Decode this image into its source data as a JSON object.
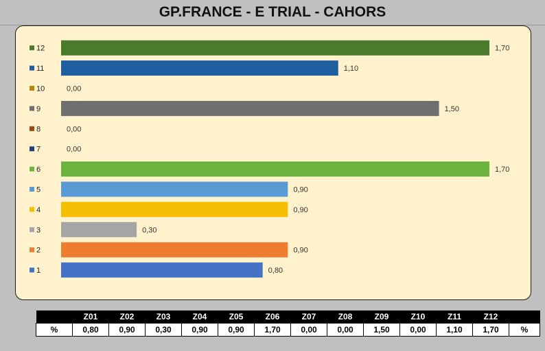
{
  "title": "GP.FRANCE - E TRIAL - CAHORS",
  "colors": {
    "background": "#c0c0c0",
    "plot_area": "#fff2cc"
  },
  "chart_data": {
    "type": "bar",
    "orientation": "horizontal",
    "categories": [
      "12",
      "11",
      "10",
      "9",
      "8",
      "7",
      "6",
      "5",
      "4",
      "3",
      "2",
      "1"
    ],
    "values": [
      1.7,
      1.1,
      0.0,
      1.5,
      0.0,
      0.0,
      1.7,
      0.9,
      0.9,
      0.3,
      0.9,
      0.8
    ],
    "value_labels": [
      "1,70",
      "1,10",
      "0,00",
      "1,50",
      "0,00",
      "0,00",
      "1,70",
      "0,90",
      "0,90",
      "0,30",
      "0,90",
      "0,80"
    ],
    "colors": [
      "#4a7a2c",
      "#1f5fa0",
      "#b8860b",
      "#6f6f6f",
      "#a0460f",
      "#233f80",
      "#6ab33e",
      "#5b9bd5",
      "#f5be00",
      "#a5a5a5",
      "#ed7d31",
      "#4472c4"
    ],
    "xlim": [
      0,
      1.7
    ],
    "grid": false,
    "legend": "none",
    "title": "GP.FRANCE - E TRIAL - CAHORS"
  },
  "table": {
    "header": [
      "",
      "Z01",
      "Z02",
      "Z03",
      "Z04",
      "Z05",
      "Z06",
      "Z07",
      "Z08",
      "Z09",
      "Z10",
      "Z11",
      "Z12",
      ""
    ],
    "row": [
      "%",
      "0,80",
      "0,90",
      "0,30",
      "0,90",
      "0,90",
      "1,70",
      "0,00",
      "0,00",
      "1,50",
      "0,00",
      "1,10",
      "1,70",
      "%"
    ]
  }
}
